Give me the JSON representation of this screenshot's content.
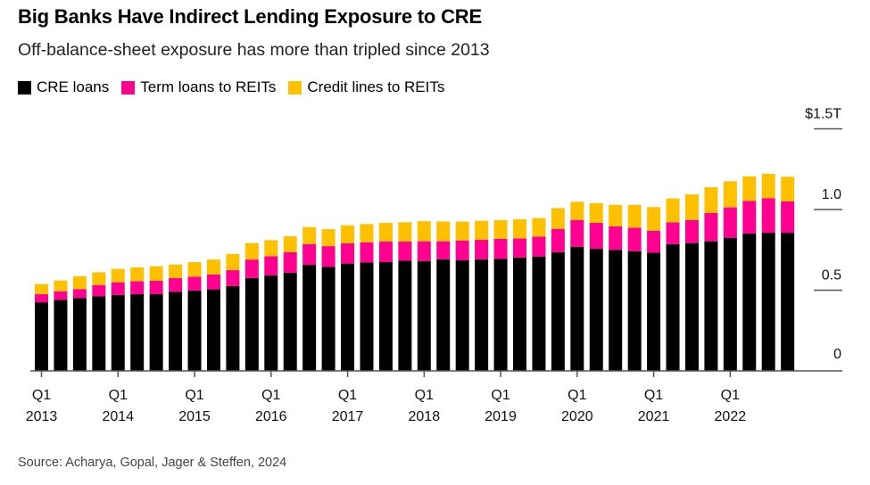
{
  "title": "Big Banks Have Indirect Lending Exposure to CRE",
  "subtitle": "Off-balance-sheet exposure has more than tripled since 2013",
  "source": "Source: Acharya, Gopal, Jager & Steffen, 2024",
  "chart_data": {
    "type": "bar",
    "stacked": true,
    "title": "Big Banks Have Indirect Lending Exposure to CRE",
    "xlabel": "",
    "ylabel": "",
    "unit": "$ trillions",
    "ylim": [
      0,
      1.5
    ],
    "yticks": [
      {
        "value": 0,
        "label": "0"
      },
      {
        "value": 0.5,
        "label": "0.5"
      },
      {
        "value": 1.0,
        "label": "1.0"
      },
      {
        "value": 1.5,
        "label": "$1.5T"
      }
    ],
    "xticks": [
      {
        "index": 0,
        "q": "Q1",
        "year": "2013"
      },
      {
        "index": 4,
        "q": "Q1",
        "year": "2014"
      },
      {
        "index": 8,
        "q": "Q1",
        "year": "2015"
      },
      {
        "index": 12,
        "q": "Q1",
        "year": "2016"
      },
      {
        "index": 16,
        "q": "Q1",
        "year": "2017"
      },
      {
        "index": 20,
        "q": "Q1",
        "year": "2018"
      },
      {
        "index": 24,
        "q": "Q1",
        "year": "2019"
      },
      {
        "index": 28,
        "q": "Q1",
        "year": "2020"
      },
      {
        "index": 32,
        "q": "Q1",
        "year": "2021"
      },
      {
        "index": 36,
        "q": "Q1",
        "year": "2022"
      }
    ],
    "categories": [
      "2013Q1",
      "2013Q2",
      "2013Q3",
      "2013Q4",
      "2014Q1",
      "2014Q2",
      "2014Q3",
      "2014Q4",
      "2015Q1",
      "2015Q2",
      "2015Q3",
      "2015Q4",
      "2016Q1",
      "2016Q2",
      "2016Q3",
      "2016Q4",
      "2017Q1",
      "2017Q2",
      "2017Q3",
      "2017Q4",
      "2018Q1",
      "2018Q2",
      "2018Q3",
      "2018Q4",
      "2019Q1",
      "2019Q2",
      "2019Q3",
      "2019Q4",
      "2020Q1",
      "2020Q2",
      "2020Q3",
      "2020Q4",
      "2021Q1",
      "2021Q2",
      "2021Q3",
      "2021Q4",
      "2022Q1",
      "2022Q2",
      "2022Q3",
      "2022Q4"
    ],
    "legend_position": "top-left",
    "series": [
      {
        "name": "CRE loans",
        "color": "#000000",
        "values": [
          0.425,
          0.44,
          0.451,
          0.462,
          0.47,
          0.475,
          0.475,
          0.49,
          0.497,
          0.505,
          0.525,
          0.576,
          0.591,
          0.608,
          0.657,
          0.645,
          0.665,
          0.672,
          0.674,
          0.683,
          0.681,
          0.691,
          0.685,
          0.691,
          0.694,
          0.702,
          0.709,
          0.735,
          0.768,
          0.757,
          0.75,
          0.742,
          0.733,
          0.785,
          0.792,
          0.803,
          0.825,
          0.851,
          0.856,
          0.856
        ]
      },
      {
        "name": "Term loans to REITs",
        "color": "#ff0090",
        "values": [
          0.05,
          0.053,
          0.056,
          0.07,
          0.079,
          0.081,
          0.083,
          0.085,
          0.087,
          0.092,
          0.099,
          0.114,
          0.12,
          0.127,
          0.129,
          0.128,
          0.125,
          0.125,
          0.127,
          0.118,
          0.122,
          0.112,
          0.123,
          0.121,
          0.124,
          0.119,
          0.123,
          0.145,
          0.167,
          0.16,
          0.145,
          0.146,
          0.136,
          0.136,
          0.143,
          0.175,
          0.188,
          0.203,
          0.214,
          0.194
        ]
      },
      {
        "name": "Credit lines to REITs",
        "color": "#ffc000",
        "values": [
          0.063,
          0.067,
          0.08,
          0.079,
          0.083,
          0.085,
          0.09,
          0.084,
          0.09,
          0.093,
          0.1,
          0.102,
          0.099,
          0.099,
          0.105,
          0.105,
          0.112,
          0.113,
          0.116,
          0.12,
          0.125,
          0.123,
          0.117,
          0.118,
          0.116,
          0.118,
          0.115,
          0.129,
          0.113,
          0.123,
          0.134,
          0.141,
          0.146,
          0.147,
          0.159,
          0.16,
          0.162,
          0.152,
          0.151,
          0.153
        ]
      }
    ]
  }
}
